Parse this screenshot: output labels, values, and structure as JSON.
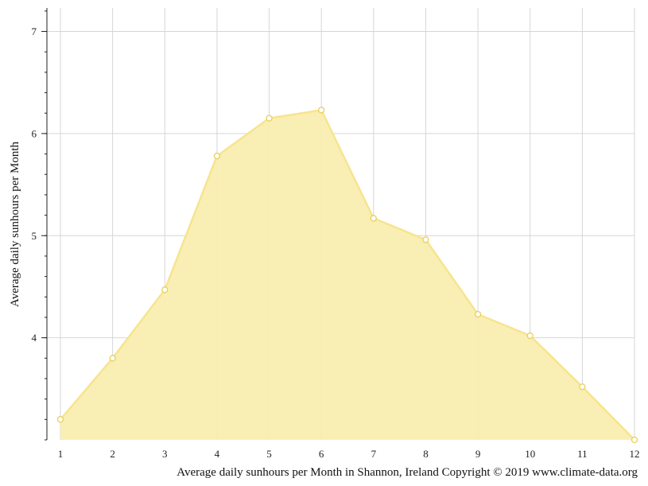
{
  "chart_data": {
    "type": "area",
    "title": "",
    "caption": "Average daily sunhours per Month in Shannon, Ireland Copyright © 2019 www.climate-data.org",
    "xlabel": "",
    "ylabel": "Average daily sunhours per Month",
    "x": [
      1,
      2,
      3,
      4,
      5,
      6,
      7,
      8,
      9,
      10,
      11,
      12
    ],
    "series": [
      {
        "name": "",
        "values": [
          3.2,
          3.8,
          4.47,
          5.78,
          6.15,
          6.23,
          5.17,
          4.96,
          4.23,
          4.02,
          3.52,
          3.0
        ]
      }
    ],
    "xlim": [
      1,
      12
    ],
    "ylim": [
      3.0,
      7.23
    ],
    "x_ticks": [
      "1",
      "2",
      "3",
      "4",
      "5",
      "6",
      "7",
      "8",
      "9",
      "10",
      "11",
      "12"
    ],
    "y_ticks": [
      4,
      5,
      6,
      7
    ],
    "grid": true,
    "legend": "none",
    "colors": {
      "fill": "#f9eeb0",
      "line": "#f7e48e",
      "marker_stroke": "#e8cf55",
      "grid": "#d6d6d6",
      "axis": "#222222"
    }
  }
}
